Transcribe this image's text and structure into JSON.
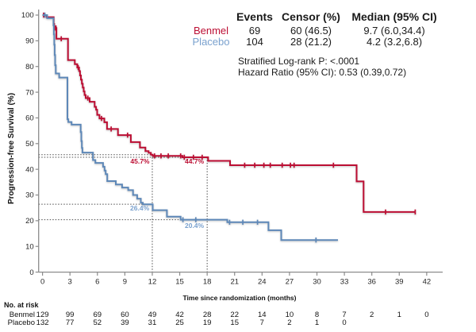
{
  "colors": {
    "benmel": "#BC0E33",
    "benmel_text": "#BC0E33",
    "placebo": "#5E88B8",
    "placebo_text": "#7AA1CE",
    "axis": "#8C8C8C",
    "tick_text": "#262626",
    "ref_line": "#4d4d4d"
  },
  "legend_table": {
    "headers": [
      "Events",
      "Censor (%)",
      "Median (95% CI)"
    ],
    "rows": [
      {
        "name": "Benmel",
        "events": "69",
        "censor": "60 (46.5)",
        "median": "9.7 (6.0,34.4)"
      },
      {
        "name": "Placebo",
        "events": "104",
        "censor": "28 (21.2)",
        "median": "4.2 (3.2,6.8)"
      }
    ]
  },
  "stats_lines": {
    "line1": "Stratified Log-rank P: <.0001",
    "line2": "Hazard Ratio (95% CI): 0.53 (0.39,0.72)"
  },
  "risk_table": {
    "title": "No. at risk",
    "rows": [
      {
        "name": "Benmel",
        "values": [
          129,
          99,
          69,
          60,
          49,
          42,
          28,
          22,
          14,
          10,
          8,
          7,
          2,
          1,
          0
        ]
      },
      {
        "name": "Placebo",
        "values": [
          132,
          77,
          52,
          39,
          31,
          25,
          19,
          15,
          7,
          2,
          1,
          0
        ]
      }
    ]
  },
  "chart_data": {
    "type": "line",
    "subtype": "kaplan-meier-step",
    "xlabel": "Time since randomization (months)",
    "ylabel": "Progression-free Survival (%)",
    "xlim": [
      0,
      42
    ],
    "ylim": [
      0,
      100
    ],
    "xticks": [
      0,
      3,
      6,
      9,
      12,
      15,
      18,
      21,
      24,
      27,
      30,
      33,
      36,
      39,
      42
    ],
    "yticks": [
      0,
      10,
      20,
      30,
      40,
      50,
      60,
      70,
      80,
      90,
      100
    ],
    "grid": false,
    "legend_position": "top-right-table",
    "series": [
      {
        "name": "Benmel",
        "color": "#BC0E33",
        "end": 40.8,
        "steps": [
          [
            0.0,
            100
          ],
          [
            0.45,
            99.2
          ],
          [
            1.22,
            96.5
          ],
          [
            1.28,
            95.0
          ],
          [
            1.52,
            90.8
          ],
          [
            2.78,
            82.5
          ],
          [
            3.53,
            80.9
          ],
          [
            3.8,
            79.6
          ],
          [
            4.0,
            78.2
          ],
          [
            4.1,
            76.5
          ],
          [
            4.2,
            74.9
          ],
          [
            4.3,
            73.3
          ],
          [
            4.4,
            71.8
          ],
          [
            4.5,
            70.3
          ],
          [
            4.6,
            68.9
          ],
          [
            4.72,
            67.7
          ],
          [
            5.15,
            66.3
          ],
          [
            5.7,
            64.3
          ],
          [
            5.85,
            63.2
          ],
          [
            5.98,
            61.2
          ],
          [
            6.23,
            59.8
          ],
          [
            6.76,
            58.3
          ],
          [
            7.05,
            55.7
          ],
          [
            8.25,
            53.3
          ],
          [
            9.65,
            50.6
          ],
          [
            10.65,
            48.5
          ],
          [
            11.25,
            47.1
          ],
          [
            11.6,
            46.4
          ],
          [
            11.85,
            45.7
          ],
          [
            12.05,
            45.2
          ],
          [
            15.3,
            44.7
          ],
          [
            18.1,
            43.3
          ],
          [
            20.5,
            41.6
          ],
          [
            34.34,
            35.3
          ],
          [
            35.1,
            23.4
          ]
        ],
        "censors": [
          [
            0.12,
            100
          ],
          [
            1.33,
            95.0
          ],
          [
            1.47,
            95.0
          ],
          [
            2.05,
            90.8
          ],
          [
            3.9,
            79.6
          ],
          [
            4.95,
            67.7
          ],
          [
            6.45,
            59.8
          ],
          [
            7.5,
            55.7
          ],
          [
            9.3,
            53.3
          ],
          [
            12.25,
            45.2
          ],
          [
            12.95,
            45.2
          ],
          [
            13.75,
            45.2
          ],
          [
            15.1,
            45.2
          ],
          [
            15.5,
            44.7
          ],
          [
            16.5,
            44.7
          ],
          [
            17.45,
            44.7
          ],
          [
            22.1,
            41.6
          ],
          [
            23.2,
            41.6
          ],
          [
            24.2,
            41.6
          ],
          [
            24.9,
            41.6
          ],
          [
            26.2,
            41.6
          ],
          [
            27.1,
            41.6
          ],
          [
            27.5,
            41.6
          ],
          [
            31.8,
            41.6
          ],
          [
            37.5,
            23.4
          ],
          [
            40.75,
            23.4
          ]
        ]
      },
      {
        "name": "Placebo",
        "color": "#5E88B8",
        "end": 32.3,
        "steps": [
          [
            0.0,
            100
          ],
          [
            0.5,
            98.8
          ],
          [
            1.2,
            96.0
          ],
          [
            1.24,
            92.5
          ],
          [
            1.28,
            88.5
          ],
          [
            1.33,
            84.5
          ],
          [
            1.38,
            80.5
          ],
          [
            1.45,
            77.3
          ],
          [
            1.82,
            75.7
          ],
          [
            2.72,
            59.5
          ],
          [
            2.82,
            58.4
          ],
          [
            3.17,
            57.4
          ],
          [
            4.17,
            54.5
          ],
          [
            4.24,
            51.0
          ],
          [
            4.3,
            48.3
          ],
          [
            4.36,
            46.5
          ],
          [
            5.52,
            43.6
          ],
          [
            5.78,
            42.5
          ],
          [
            6.62,
            41.0
          ],
          [
            6.78,
            39.5
          ],
          [
            6.9,
            38.1
          ],
          [
            7.08,
            35.4
          ],
          [
            8.01,
            34.1
          ],
          [
            8.7,
            32.9
          ],
          [
            9.37,
            31.9
          ],
          [
            9.9,
            30.0
          ],
          [
            10.35,
            28.6
          ],
          [
            10.75,
            27.0
          ],
          [
            10.97,
            26.4
          ],
          [
            12.05,
            24.1
          ],
          [
            13.6,
            21.6
          ],
          [
            15.1,
            20.4
          ],
          [
            20.2,
            19.4
          ],
          [
            24.7,
            16.3
          ],
          [
            26.1,
            12.5
          ]
        ],
        "censors": [
          [
            0.25,
            100
          ],
          [
            15.35,
            20.4
          ],
          [
            16.76,
            20.4
          ],
          [
            20.45,
            19.4
          ],
          [
            21.9,
            19.4
          ],
          [
            23.5,
            19.4
          ],
          [
            29.9,
            12.5
          ]
        ]
      }
    ],
    "reference_lines": {
      "vertical": [
        {
          "x": 12,
          "y_top": 45.7
        },
        {
          "x": 18,
          "y_top": 44.7
        }
      ],
      "horizontal": [
        {
          "y": 45.7,
          "x_right": 12
        },
        {
          "y": 44.7,
          "x_right": 18
        },
        {
          "y": 26.4,
          "x_right": 12
        },
        {
          "y": 20.4,
          "x_right": 18
        }
      ]
    },
    "annotations": [
      {
        "text": "45.7%",
        "x_month": 11.7,
        "y_pct": 43.2,
        "color": "#BC0E33",
        "anchor": "end"
      },
      {
        "text": "44.7%",
        "x_month": 17.65,
        "y_pct": 43.2,
        "color": "#BC0E33",
        "anchor": "end"
      },
      {
        "text": "26.4%",
        "x_month": 11.67,
        "y_pct": 24.9,
        "color": "#7AA1CE",
        "anchor": "end"
      },
      {
        "text": "20.4%",
        "x_month": 17.65,
        "y_pct": 18.15,
        "color": "#7AA1CE",
        "anchor": "end"
      }
    ]
  }
}
